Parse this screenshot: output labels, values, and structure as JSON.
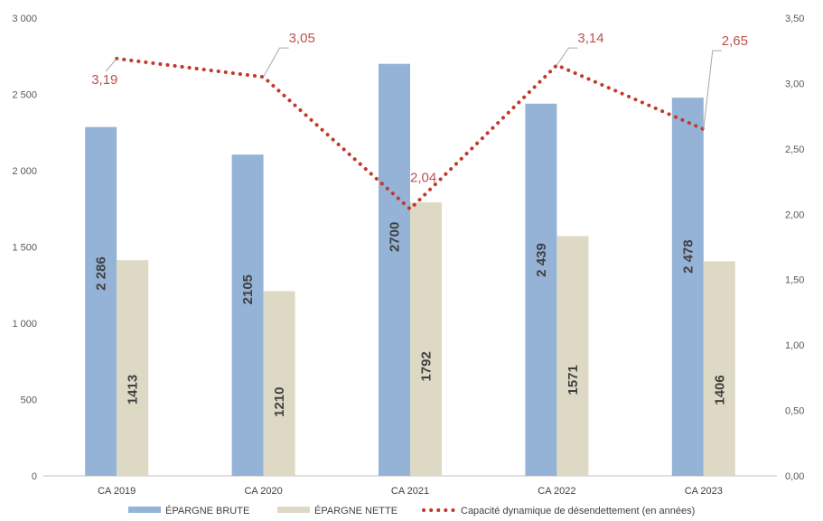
{
  "chart_data": {
    "type": "bar",
    "categories": [
      "CA 2019",
      "CA 2020",
      "CA 2021",
      "CA 2022",
      "CA 2023"
    ],
    "series": [
      {
        "name": "ÉPARGNE BRUTE",
        "type": "bar",
        "axis": "left",
        "color": "#95b3d7",
        "values": [
          2286,
          2105,
          2700,
          2439,
          2478
        ],
        "labels": [
          "2 286",
          "2105",
          "2700",
          "2 439",
          "2 478"
        ]
      },
      {
        "name": "ÉPARGNE NETTE",
        "type": "bar",
        "axis": "left",
        "color": "#ddd9c4",
        "values": [
          1413,
          1210,
          1792,
          1571,
          1406
        ],
        "labels": [
          "1413",
          "1210",
          "1792",
          "1571",
          "1406"
        ]
      },
      {
        "name": "Capacité dynamique de désendettement (en années)",
        "type": "line",
        "style": "dotted",
        "axis": "right",
        "color": "#c0392b",
        "values": [
          3.19,
          3.05,
          2.04,
          3.14,
          2.65
        ],
        "labels": [
          "3,19",
          "3,05",
          "2,04",
          "3,14",
          "2,65"
        ]
      }
    ],
    "y_left": {
      "ylim": [
        0,
        3000
      ],
      "ticks": [
        "0",
        "500",
        "1 000",
        "1 500",
        "2 000",
        "2 500",
        "3 000"
      ]
    },
    "y_right": {
      "ylim": [
        0,
        3.5
      ],
      "ticks": [
        "0,00",
        "0,50",
        "1,00",
        "1,50",
        "2,00",
        "2,50",
        "3,00",
        "3,50"
      ]
    },
    "grid": false,
    "legend": "bottom"
  }
}
